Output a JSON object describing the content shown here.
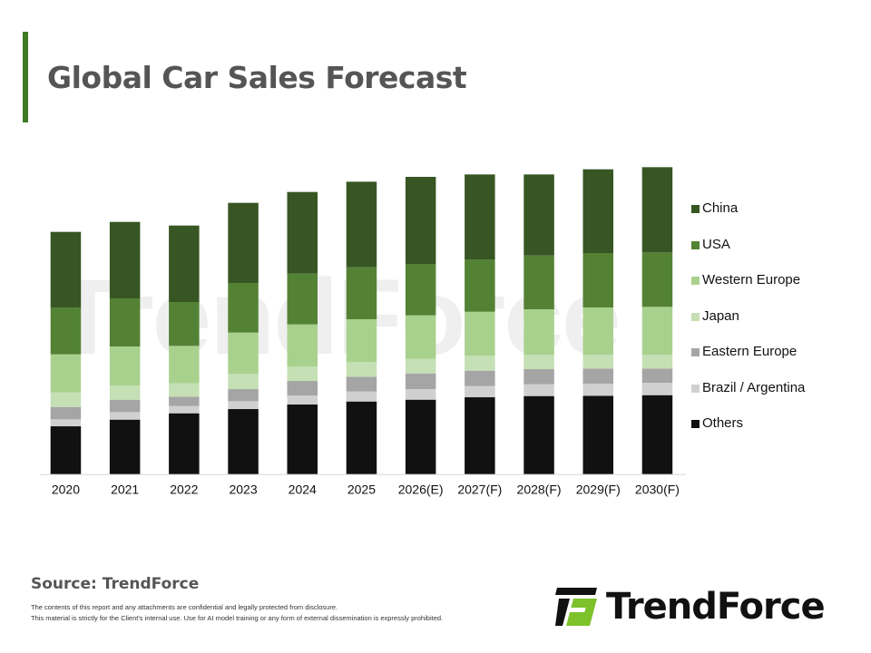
{
  "title": "Global Car Sales Forecast",
  "watermark": "TrendForce",
  "source": "Source: TrendForce",
  "disclaimer": [
    "The contents of this report and any attachments are confidential and legally protected from disclosure.",
    "This material is strictly for the Client's internal use. Use for AI model training or any form of external dissemination is expressly prohibited."
  ],
  "logo_text": "TrendForce",
  "colors": {
    "accent": "#3f7a25",
    "logo_green": "#7dc12b"
  },
  "chart_data": {
    "type": "bar",
    "stacked": true,
    "title": "Global Car Sales Forecast",
    "xlabel": "",
    "ylabel": "",
    "note": "No y-axis shown; values are estimated relative magnitudes",
    "ylim": [
      0,
      110
    ],
    "legend_position": "right",
    "categories": [
      "2020",
      "2021",
      "2022",
      "2023",
      "2024",
      "2025",
      "2026(E)",
      "2027(F)",
      "2028(F)",
      "2029(F)",
      "2030(F)"
    ],
    "series": [
      {
        "name": "Others",
        "color": "#111111",
        "values": [
          15.8,
          18.0,
          20.1,
          21.5,
          23.0,
          24.0,
          24.6,
          25.4,
          25.8,
          25.9,
          26.1
        ]
      },
      {
        "name": "Brazil / Argentina",
        "color": "#d0d0d0",
        "values": [
          2.3,
          2.5,
          2.4,
          2.6,
          3.0,
          3.3,
          3.5,
          3.7,
          3.9,
          4.0,
          4.1
        ]
      },
      {
        "name": "Eastern Europe",
        "color": "#a5a5a5",
        "values": [
          4.1,
          4.1,
          3.1,
          4.0,
          4.8,
          4.9,
          5.2,
          5.1,
          5.0,
          5.0,
          4.7
        ]
      },
      {
        "name": "Japan",
        "color": "#c5e0b4",
        "values": [
          4.8,
          4.7,
          4.4,
          5.0,
          4.8,
          4.8,
          4.8,
          4.9,
          4.8,
          4.6,
          4.6
        ]
      },
      {
        "name": "Western Europe",
        "color": "#a9d18e",
        "values": [
          12.6,
          12.9,
          12.4,
          13.7,
          13.9,
          14.2,
          14.4,
          14.6,
          15.0,
          15.6,
          15.8
        ]
      },
      {
        "name": "USA",
        "color": "#548235",
        "values": [
          15.4,
          15.9,
          14.5,
          16.4,
          16.8,
          17.2,
          17.0,
          17.2,
          17.8,
          18.0,
          18.0
        ]
      },
      {
        "name": "China",
        "color": "#375623",
        "values": [
          25.1,
          25.3,
          25.3,
          26.5,
          27.0,
          28.3,
          28.8,
          28.2,
          26.8,
          27.7,
          28.2
        ]
      }
    ],
    "legend_order": [
      "China",
      "USA",
      "Western Europe",
      "Japan",
      "Eastern Europe",
      "Brazil / Argentina",
      "Others"
    ]
  }
}
